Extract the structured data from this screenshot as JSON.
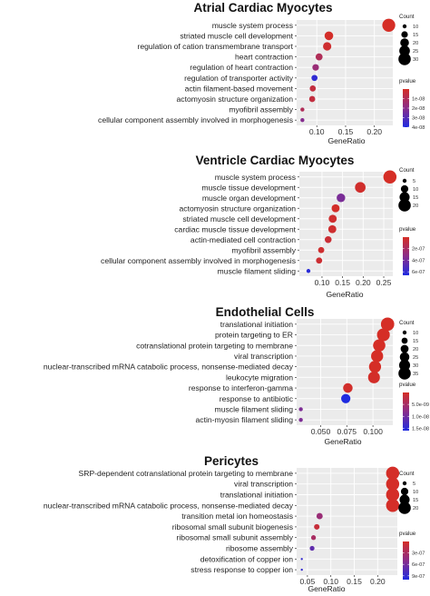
{
  "colors": {
    "high_p": "#d52e26",
    "mid_p": "#8a2d8a",
    "low_p": "#1f2be0",
    "panel_bg": "#ebebeb",
    "grid": "#ffffff"
  },
  "chart_data": [
    {
      "type": "scatter",
      "title": "Atrial Cardiac Myocytes",
      "xlabel": "GeneRatio",
      "ylabel": "",
      "xlim": [
        0.065,
        0.232
      ],
      "xticks": [
        0.1,
        0.15,
        0.2
      ],
      "xtick_labels": [
        "0.10",
        "0.15",
        "0.20"
      ],
      "terms": [
        "muscle system process",
        "striated muscle cell development",
        "regulation of cation transmembrane transport",
        "heart contraction",
        "regulation of heart contraction",
        "regulation of transporter activity",
        "actin filament-based movement",
        "actomyosin structure organization",
        "myofibril assembly",
        "cellular component assembly involved in morphogenesis"
      ],
      "gene_ratio": [
        0.225,
        0.121,
        0.118,
        0.104,
        0.098,
        0.096,
        0.093,
        0.092,
        0.075,
        0.075
      ],
      "count": [
        32,
        20,
        19,
        16,
        15,
        14,
        14,
        14,
        10,
        10
      ],
      "pvalue": [
        1e-11,
        5e-10,
        2e-09,
        1e-08,
        1.6e-08,
        3.7e-08,
        5e-09,
        5e-09,
        1e-08,
        2.1e-08
      ],
      "size_legend": {
        "title": "Count",
        "values": [
          10,
          15,
          20,
          25,
          30
        ],
        "labels": [
          "10",
          "15",
          "20",
          "25",
          "30"
        ]
      },
      "color_legend": {
        "title": "pvalue",
        "min": 0,
        "max": 4e-08,
        "ticks": [
          1e-08,
          2e-08,
          3e-08,
          4e-08
        ],
        "tick_labels": [
          "1e-08",
          "2e-08",
          "3e-08",
          "4e-08"
        ]
      }
    },
    {
      "type": "scatter",
      "title": "Ventricle Cardiac Myocytes",
      "xlabel": "GeneRatio",
      "ylabel": "",
      "xlim": [
        0.045,
        0.272
      ],
      "xticks": [
        0.1,
        0.15,
        0.2,
        0.25
      ],
      "xtick_labels": [
        "0.10",
        "0.15",
        "0.20",
        "0.25"
      ],
      "terms": [
        "muscle system process",
        "muscle tissue development",
        "muscle organ development",
        "actomyosin structure organization",
        "striated muscle cell development",
        "cardiac muscle tissue development",
        "actin-mediated cell contraction",
        "myofibril assembly",
        "cellular component assembly involved in morphogenesis",
        "muscle filament sliding"
      ],
      "gene_ratio": [
        0.265,
        0.193,
        0.146,
        0.133,
        0.126,
        0.125,
        0.115,
        0.098,
        0.093,
        0.067
      ],
      "count": [
        22,
        16,
        12,
        11,
        11,
        11,
        9,
        8,
        8,
        5
      ],
      "pvalue": [
        1e-09,
        2e-08,
        3.8e-07,
        1e-08,
        3e-08,
        3e-08,
        5e-08,
        3e-08,
        4e-08,
        6.3e-07
      ],
      "size_legend": {
        "title": "Count",
        "values": [
          5,
          10,
          15,
          20
        ],
        "labels": [
          "5",
          "10",
          "15",
          "20"
        ]
      },
      "color_legend": {
        "title": "pvalue",
        "min": 0,
        "max": 6.6e-07,
        "ticks": [
          2e-07,
          4e-07,
          6e-07
        ],
        "tick_labels": [
          "2e-07",
          "4e-07",
          "6e-07"
        ]
      }
    },
    {
      "type": "scatter",
      "title": "Endothelial Cells",
      "xlabel": "GeneRatio",
      "ylabel": "",
      "xlim": [
        0.027,
        0.119
      ],
      "xticks": [
        0.05,
        0.075,
        0.1
      ],
      "xtick_labels": [
        "0.050",
        "0.075",
        "0.100"
      ],
      "terms": [
        "translational initiation",
        "protein targeting to ER",
        "cotranslational protein targeting to membrane",
        "viral transcription",
        "nuclear-transcribed mRNA catabolic process, nonsense-mediated decay",
        "leukocyte migration",
        "response to interferon-gamma",
        "response to antibiotic",
        "muscle filament sliding",
        "actin-myosin filament sliding"
      ],
      "gene_ratio": [
        0.114,
        0.11,
        0.106,
        0.104,
        0.102,
        0.101,
        0.076,
        0.074,
        0.031,
        0.031
      ],
      "count": [
        39,
        37,
        35,
        34,
        34,
        33,
        25,
        24,
        10,
        10
      ],
      "pvalue": [
        1e-11,
        1e-11,
        2e-11,
        2e-11,
        2e-11,
        2e-10,
        4e-10,
        1.6e-08,
        9e-09,
        9e-09
      ],
      "size_legend": {
        "title": "Count",
        "values": [
          10,
          15,
          20,
          25,
          30,
          35
        ],
        "labels": [
          "10",
          "15",
          "20",
          "25",
          "30",
          "35"
        ]
      },
      "color_legend": {
        "title": "pvalue",
        "min": 0,
        "max": 1.6e-08,
        "ticks": [
          5e-09,
          1e-08,
          1.5e-08
        ],
        "tick_labels": [
          "5.0e-09",
          "1.0e-08",
          "1.5e-08"
        ]
      }
    },
    {
      "type": "scatter",
      "title": "Pericytes",
      "xlabel": "GeneRatio",
      "ylabel": "",
      "xlim": [
        0.027,
        0.242
      ],
      "xticks": [
        0.05,
        0.1,
        0.15,
        0.2
      ],
      "xtick_labels": [
        "0.05",
        "0.10",
        "0.15",
        "0.20"
      ],
      "terms": [
        "SRP-dependent cotranslational protein targeting to membrane",
        "viral transcription",
        "translational initiation",
        "nuclear-transcribed mRNA catabolic process, nonsense-mediated decay",
        "transition metal ion homeostasis",
        "ribosomal small subunit biogenesis",
        "ribosomal small subunit assembly",
        "ribosome assembly",
        "detoxification of copper ion",
        "stress response to copper ion"
      ],
      "gene_ratio": [
        0.232,
        0.232,
        0.232,
        0.232,
        0.076,
        0.07,
        0.063,
        0.06,
        0.038,
        0.038
      ],
      "count": [
        22,
        22,
        22,
        22,
        8,
        7,
        6,
        6,
        3,
        3
      ],
      "pvalue": [
        1e-08,
        1e-08,
        1e-08,
        1e-08,
        4e-07,
        1e-07,
        3e-07,
        7e-07,
        9e-07,
        9e-07
      ],
      "size_legend": {
        "title": "Count",
        "values": [
          5,
          10,
          15,
          20
        ],
        "labels": [
          "5",
          "10",
          "15",
          "20"
        ]
      },
      "color_legend": {
        "title": "pvalue",
        "min": 0,
        "max": 1e-06,
        "ticks": [
          3e-07,
          6e-07,
          9e-07
        ],
        "tick_labels": [
          "3e-07",
          "6e-07",
          "9e-07"
        ]
      }
    }
  ]
}
